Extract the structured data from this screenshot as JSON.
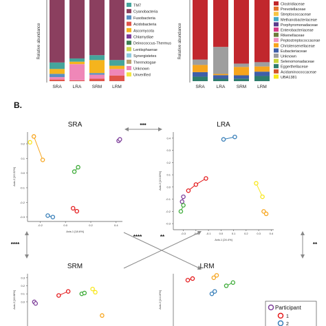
{
  "section_label": "B.",
  "colors": {
    "TM7": "#45a59c",
    "Cyanobacteria": "#8b3f5f",
    "Fusobacteria": "#5a8fc2",
    "Acidobacteria": "#e0544a",
    "Ascomycota": "#f5b41d",
    "Chlamydiae": "#7d3e9a",
    "Deinococcus-Thermus": "#3f7f52",
    "Lentisphaerae": "#cfd64b",
    "Synergistetes": "#8ec9de",
    "Thermotogae": "#b9a070",
    "Unknown": "#ef87b8",
    "Unverified": "#f2e641",
    "Clostridiaceae": "#c1272d",
    "Prevotellaceae": "#e3712c",
    "Streptococcaceae": "#f6c444",
    "Methanobacteriaceae": "#45a8c6",
    "Porphyromonadaceae": "#5a3d8c",
    "Enterobacteriaceae": "#d43c8a",
    "Rikenellaceae": "#6c7d3a",
    "Peptostreptococcaceae": "#f08fc0",
    "Christensenellaceae": "#f7a51d",
    "Eubacteriaceae": "#3f5fa8",
    "Unknown2": "#9e9e9e",
    "Selenomonadaceae": "#c7d63a",
    "Eggerthellaceae": "#2e7d6b",
    "Acidaminococcaceae": "#d4542a",
    "UBA1381": "#f8e71c",
    "participant1": "#e41a1c",
    "participant2": "#377eb8"
  },
  "chart_data": [
    {
      "type": "bar",
      "panel": "A-left",
      "ylabel": "Relative abundance",
      "categories": [
        "SRA",
        "LRA",
        "SRM",
        "LRM"
      ],
      "series": [
        {
          "name": "Cyanobacteria",
          "values": [
            0.77,
            0.72,
            0.68,
            0.74
          ]
        },
        {
          "name": "TM7",
          "values": [
            0.08,
            0.04,
            0.06,
            0.07
          ]
        },
        {
          "name": "Ascomycota",
          "values": [
            0.06,
            0.03,
            0.16,
            0.04
          ]
        },
        {
          "name": "Fusobacteria",
          "values": [
            0.04,
            0.0,
            0.02,
            0.0
          ]
        },
        {
          "name": "Unknown",
          "values": [
            0.03,
            0.2,
            0.05,
            0.08
          ]
        },
        {
          "name": "Acidobacteria",
          "values": [
            0.02,
            0.01,
            0.03,
            0.07
          ]
        }
      ]
    },
    {
      "type": "bar",
      "panel": "A-right",
      "ylabel": "Relative abundance",
      "categories": [
        "SRA",
        "LRA",
        "SRM",
        "LRM"
      ],
      "series": [
        {
          "name": "Clostridiaceae",
          "values": [
            0.66,
            0.78,
            0.76,
            0.72
          ]
        },
        {
          "name": "Unknown",
          "values": [
            0.06,
            0.45,
            0.04,
            0.05
          ]
        },
        {
          "name": "Christensenellaceae",
          "values": [
            0.08,
            0.02,
            0.1,
            0.06
          ]
        },
        {
          "name": "Eubacteriaceae",
          "values": [
            0.05,
            0.06,
            0.04,
            0.05
          ]
        },
        {
          "name": "Eggerthellaceae",
          "values": [
            0.05,
            0.04,
            0.03,
            0.06
          ]
        }
      ]
    },
    {
      "type": "scatter",
      "panel": "SRA",
      "title": "SRA",
      "xlabel": "Axis.1 [18.6%]",
      "ylabel": "Axis.2 [15.52%]",
      "xlim": [
        -0.3,
        0.45
      ],
      "ylim": [
        -0.33,
        0.28
      ],
      "xticks": [
        "-0.2",
        "0.0",
        "0.2",
        "0.4"
      ],
      "yticks": [
        "-0.3",
        "-0.2",
        "-0.1",
        "0.0",
        "0.1",
        "0.2"
      ],
      "pairs": [
        {
          "color": "#f7a51d",
          "points": [
            [
              -0.25,
              0.25
            ],
            [
              -0.18,
              0.09
            ]
          ]
        },
        {
          "color": "#f8e71c",
          "points": [
            [
              -0.28,
              0.21
            ]
          ]
        },
        {
          "color": "#7d3e9a",
          "points": [
            [
              0.42,
              0.22
            ],
            [
              0.43,
              0.23
            ]
          ]
        },
        {
          "color": "#3aaa35",
          "points": [
            [
              0.07,
              0.01
            ],
            [
              0.1,
              0.04
            ]
          ]
        },
        {
          "color": "#e41a1c",
          "points": [
            [
              0.06,
              -0.24
            ],
            [
              0.09,
              -0.26
            ]
          ]
        },
        {
          "color": "#377eb8",
          "points": [
            [
              -0.14,
              -0.29
            ],
            [
              -0.1,
              -0.3
            ]
          ]
        }
      ]
    },
    {
      "type": "scatter",
      "panel": "LRA",
      "title": "LRA",
      "xlabel": "Axis.1 [24.4%]",
      "ylabel": "Axis.2 [13.03%]",
      "xlim": [
        -0.38,
        0.42
      ],
      "ylim": [
        -0.35,
        0.45
      ],
      "xticks": [
        "-0.3",
        "-0.2",
        "-0.1",
        "0.0",
        "0.1",
        "0.2",
        "0.3",
        "0.4"
      ],
      "yticks": [
        "-0.3",
        "-0.2",
        "-0.1",
        "0.0",
        "0.1",
        "0.2",
        "0.3",
        "0.4"
      ],
      "pairs": [
        {
          "color": "#377eb8",
          "points": [
            [
              0.02,
              0.39
            ],
            [
              0.11,
              0.41
            ]
          ]
        },
        {
          "color": "#e41a1c",
          "points": [
            [
              -0.26,
              -0.03
            ],
            [
              -0.2,
              0.02
            ],
            [
              -0.12,
              0.07
            ]
          ]
        },
        {
          "color": "#7d3e9a",
          "points": [
            [
              -0.3,
              -0.08
            ],
            [
              -0.31,
              -0.12
            ]
          ]
        },
        {
          "color": "#3aaa35",
          "points": [
            [
              -0.32,
              -0.2
            ],
            [
              -0.3,
              -0.15
            ]
          ]
        },
        {
          "color": "#f8e71c",
          "points": [
            [
              0.28,
              0.03
            ],
            [
              0.33,
              -0.08
            ]
          ]
        },
        {
          "color": "#f7a51d",
          "points": [
            [
              0.34,
              -0.2
            ],
            [
              0.36,
              -0.22
            ]
          ]
        }
      ]
    },
    {
      "type": "scatter",
      "panel": "SRM",
      "title": "SRM",
      "yticks": [
        "0.3",
        "0.2",
        "0.1",
        "0.0"
      ],
      "ylabel": "Axis.2 [18.68%]",
      "pairs": [
        {
          "color": "#e41a1c",
          "points": [
            [
              -0.12,
              0.08
            ],
            [
              -0.05,
              0.13
            ]
          ]
        },
        {
          "color": "#3aaa35",
          "points": [
            [
              0.05,
              0.1
            ],
            [
              0.07,
              0.11
            ]
          ]
        },
        {
          "color": "#f8e71c",
          "points": [
            [
              0.13,
              0.16
            ],
            [
              0.15,
              0.12
            ]
          ]
        },
        {
          "color": "#7d3e9a",
          "points": [
            [
              -0.3,
              0.0
            ],
            [
              -0.29,
              -0.02
            ]
          ]
        },
        {
          "color": "#f7a51d",
          "points": [
            [
              0.2,
              -0.17
            ]
          ]
        }
      ]
    },
    {
      "type": "scatter",
      "panel": "LRM",
      "title": "LRM",
      "ylabel": "Axis.2 [14.16%]",
      "pairs": [
        {
          "color": "#f7a51d",
          "points": [
            [
              0.07,
              0.3
            ],
            [
              0.1,
              0.33
            ]
          ]
        },
        {
          "color": "#3aaa35",
          "points": [
            [
              0.2,
              0.2
            ],
            [
              0.27,
              0.24
            ]
          ]
        },
        {
          "color": "#377eb8",
          "points": [
            [
              0.05,
              0.1
            ],
            [
              0.08,
              0.13
            ]
          ]
        },
        {
          "color": "#e41a1c",
          "points": [
            [
              -0.2,
              0.27
            ],
            [
              -0.15,
              0.29
            ]
          ]
        }
      ]
    }
  ],
  "panelA": {
    "left_ylabel": "Relative abundance",
    "right_ylabel": "Relative abundance",
    "categories": [
      "SRA",
      "LRA",
      "SRM",
      "LRM"
    ],
    "left_legend": [
      "TM7",
      "Cyanobacteria",
      "Fusobacteria",
      "Acidobacteria",
      "Ascomycota",
      "Chlamydiae",
      "Deinococcus-Thermus",
      "Lentisphaerae",
      "Synergistetes",
      "Thermotogae",
      "Unknown",
      "Unverified"
    ],
    "right_legend": [
      "Clostridiaceae",
      "Prevotellaceae",
      "Streptococcaceae",
      "Methanobacteriaceae",
      "Porphyromonadaceae",
      "Enterobacteriaceae",
      "Rikenellaceae",
      "Peptostreptococcaceae",
      "Christensenellaceae",
      "Eubacteriaceae",
      "Unknown",
      "Selenomonadaceae",
      "Eggerthellaceae",
      "Acidaminococcaceae",
      "UBA1381"
    ]
  },
  "panelB": {
    "sig_SRA_LRA": "***",
    "sig_SRA_SRM": "****",
    "sig_center_left": "****",
    "sig_center_right": "**",
    "sig_LRA_LRM": "**",
    "legend_title": "Participant",
    "legend_items": [
      "1",
      "2"
    ]
  }
}
